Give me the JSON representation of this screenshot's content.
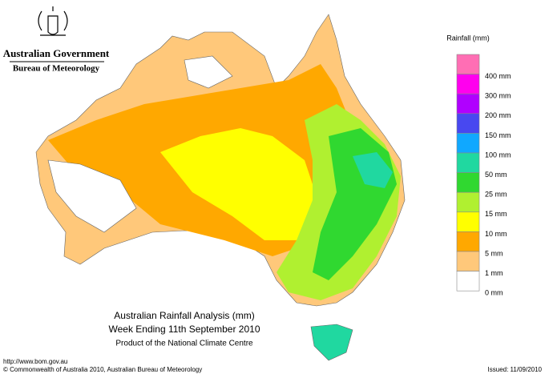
{
  "header": {
    "government": "Australian Government",
    "bureau": "Bureau of Meteorology"
  },
  "legend": {
    "title": "Rainfall (mm)",
    "items": [
      {
        "color": "#ff6eb4"
      },
      {
        "color": "#ff00ee",
        "label": "400 mm"
      },
      {
        "color": "#b000ff",
        "label": "300 mm"
      },
      {
        "color": "#4848f0",
        "label": "200 mm"
      },
      {
        "color": "#10a8ff",
        "label": "150 mm"
      },
      {
        "color": "#20d8a0",
        "label": "100 mm"
      },
      {
        "color": "#30d830",
        "label": "50 mm"
      },
      {
        "color": "#b0f030",
        "label": "25 mm"
      },
      {
        "color": "#ffff00",
        "label": "15 mm"
      },
      {
        "color": "#ffa800",
        "label": "10 mm"
      },
      {
        "color": "#ffc87a",
        "label": "5 mm"
      },
      {
        "color": "#ffffff",
        "label": "1 mm"
      }
    ],
    "bottom_label": "0 mm"
  },
  "title": {
    "line1": "Australian Rainfall Analysis (mm)",
    "line2": "Week Ending 11th September 2010",
    "line3": "Product of the National Climate Centre"
  },
  "footer": {
    "url": "http://www.bom.gov.au",
    "copyright": "© Commonwealth of Australia 2010, Australian Bureau of Meteorology",
    "issued": "Issued: 11/09/2010"
  }
}
